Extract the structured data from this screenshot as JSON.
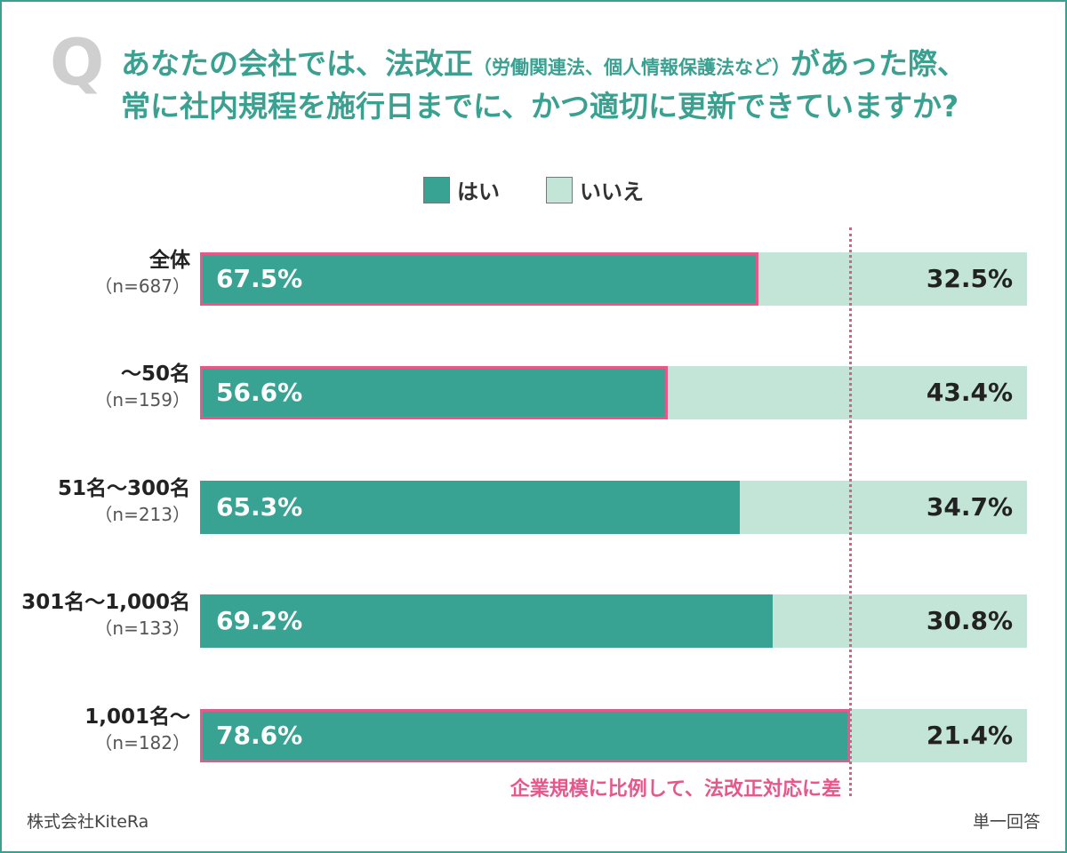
{
  "question": {
    "mark": "Q",
    "line1_main": "あなたの会社では、法改正",
    "line1_sub": "（労働関連法、個人情報保護法など）",
    "line1_end": "があった際、",
    "line2": "常に社内規程を施行日までに、かつ適切に更新できていますか?"
  },
  "chart_data": {
    "type": "bar",
    "orientation": "horizontal",
    "stacked": true,
    "categories": [
      {
        "name": "全体",
        "n": "（n=687）"
      },
      {
        "name": "～50名",
        "n": "（n=159）"
      },
      {
        "name": "51名～300名",
        "n": "（n=213）"
      },
      {
        "name": "301名～1,000名",
        "n": "（n=133）"
      },
      {
        "name": "1,001名～",
        "n": "（n=182）"
      }
    ],
    "series": [
      {
        "name": "はい",
        "values": [
          67.5,
          56.6,
          65.3,
          69.2,
          78.6
        ],
        "labels": [
          "67.5%",
          "56.6%",
          "65.3%",
          "69.2%",
          "78.6%"
        ],
        "color": "#38a393"
      },
      {
        "name": "いいえ",
        "values": [
          32.5,
          43.4,
          34.7,
          30.8,
          21.4
        ],
        "labels": [
          "32.5%",
          "43.4%",
          "34.7%",
          "30.8%",
          "21.4%"
        ],
        "color": "#c2e5d7"
      }
    ],
    "highlighted": [
      true,
      true,
      false,
      false,
      true
    ],
    "highlight_color": "#e8568a",
    "reference_value": 78.6,
    "annotation": "企業規模に比例して、法改正対応に差",
    "xlim": [
      0,
      100
    ],
    "legend_position": "top"
  },
  "footer": {
    "source": "株式会社KiteRa",
    "note": "単一回答"
  },
  "colors": {
    "border": "#3aa191",
    "title": "#3aa191"
  }
}
